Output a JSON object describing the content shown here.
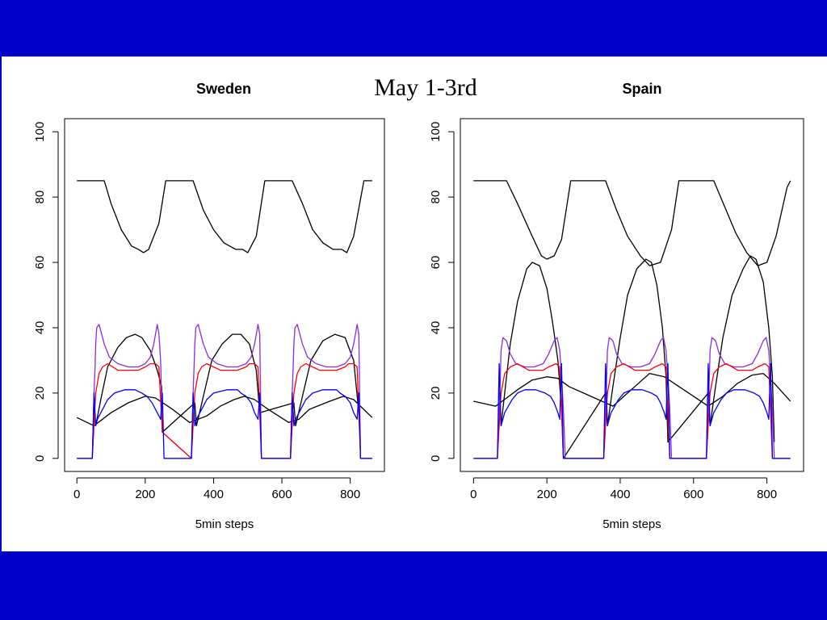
{
  "slide": {
    "title": "May 1-3rd",
    "colors": {
      "background": "#0000cc",
      "slide_area": "#ffffff"
    }
  },
  "chart_data": [
    {
      "type": "line",
      "title": "Sweden",
      "xlabel": "5min steps",
      "ylabel": "",
      "xlim": [
        -36,
        900
      ],
      "ylim": [
        -4,
        104
      ],
      "xticks": [
        0,
        200,
        400,
        600,
        800
      ],
      "yticks": [
        0,
        20,
        40,
        60,
        80,
        100
      ],
      "grid": false,
      "legend": "none",
      "series": [
        {
          "color": "#000000",
          "x": [
            0,
            80,
            100,
            130,
            160,
            180,
            195,
            210,
            240,
            260,
            340,
            370,
            400,
            430,
            465,
            485,
            500,
            525,
            550,
            630,
            660,
            690,
            720,
            750,
            775,
            790,
            810,
            840,
            864
          ],
          "y": [
            85,
            85,
            78,
            70,
            65,
            64,
            63,
            64,
            72,
            85,
            85,
            76,
            70,
            66,
            64,
            64,
            63,
            68,
            85,
            85,
            78,
            70,
            66,
            64,
            64,
            63,
            68,
            85,
            85
          ]
        },
        {
          "color": "#000000",
          "x": [
            0,
            30,
            50,
            100,
            150,
            200,
            230,
            280,
            330,
            380,
            420,
            460,
            490,
            520,
            560,
            620,
            650,
            680,
            740,
            780,
            810,
            864
          ],
          "y": [
            12.5,
            11,
            10,
            14,
            17,
            19,
            18.5,
            15,
            11,
            13,
            16,
            18,
            19,
            18,
            15,
            11,
            12,
            15,
            17.5,
            19,
            18,
            12.5
          ]
        },
        {
          "color": "#000000",
          "x": [
            50,
            55,
            70,
            90,
            120,
            145,
            170,
            190,
            215,
            235,
            248,
            250,
            345,
            350,
            370,
            395,
            425,
            455,
            480,
            505,
            525,
            535,
            635,
            640,
            660,
            685,
            720,
            755,
            785,
            810,
            825
          ],
          "y": [
            17,
            10,
            18,
            28,
            34,
            37,
            38,
            37,
            33,
            27,
            22,
            8,
            17,
            10,
            19,
            30,
            35,
            38,
            38,
            35,
            27,
            14,
            17,
            10,
            19,
            30,
            36,
            38,
            37,
            30,
            14
          ]
        },
        {
          "color": "#8a2be2",
          "x": [
            0,
            45,
            50,
            53,
            55,
            58,
            65,
            80,
            95,
            120,
            150,
            180,
            200,
            215,
            225,
            235,
            240,
            245,
            250,
            335,
            340,
            343,
            345,
            348,
            355,
            370,
            385,
            410,
            440,
            470,
            495,
            510,
            520,
            530,
            535,
            540,
            625,
            630,
            633,
            635,
            638,
            645,
            660,
            675,
            700,
            730,
            760,
            785,
            800,
            810,
            820,
            825,
            830,
            864
          ],
          "y": [
            0,
            0,
            20,
            28,
            35,
            40,
            41,
            35,
            31,
            29,
            28,
            28,
            29,
            31,
            35,
            41,
            38,
            30,
            8,
            0,
            20,
            28,
            35,
            40,
            41,
            35,
            31,
            29,
            28,
            28,
            29,
            31,
            35,
            41,
            38,
            0,
            0,
            20,
            28,
            35,
            40,
            41,
            35,
            31,
            29,
            28,
            28,
            29,
            31,
            35,
            41,
            38,
            0,
            0
          ]
        },
        {
          "color": "#ff0000",
          "x": [
            45,
            50,
            55,
            65,
            75,
            90,
            120,
            180,
            200,
            215,
            230,
            240,
            250,
            335,
            340,
            345,
            355,
            365,
            380,
            420,
            470,
            495,
            505,
            520,
            530,
            540,
            625,
            630,
            635,
            645,
            655,
            670,
            710,
            760,
            785,
            795,
            810,
            820,
            830
          ],
          "y": [
            0,
            10,
            20,
            26,
            28,
            29,
            27,
            27,
            28,
            29,
            29,
            28,
            8,
            0,
            10,
            20,
            26,
            28,
            29,
            27,
            27,
            28,
            29,
            29,
            28,
            0,
            0,
            10,
            20,
            26,
            28,
            29,
            27,
            27,
            28,
            29,
            29,
            28,
            0
          ]
        },
        {
          "color": "#0000ff",
          "x": [
            0,
            45,
            50,
            55,
            60,
            70,
            80,
            90,
            110,
            140,
            170,
            190,
            205,
            220,
            235,
            245,
            250,
            255,
            335,
            340,
            345,
            350,
            360,
            370,
            380,
            400,
            440,
            470,
            480,
            495,
            510,
            520,
            530,
            535,
            540,
            625,
            630,
            635,
            640,
            650,
            660,
            670,
            690,
            720,
            760,
            770,
            785,
            800,
            810,
            820,
            825,
            830,
            864
          ],
          "y": [
            0,
            0,
            20,
            10,
            12,
            14,
            16,
            18,
            20,
            21,
            21,
            20,
            19,
            17,
            14,
            12,
            20,
            0,
            0,
            20,
            10,
            12,
            14,
            16,
            18,
            20,
            21,
            21,
            20,
            19,
            17,
            14,
            12,
            20,
            0,
            0,
            20,
            10,
            12,
            14,
            16,
            18,
            20,
            21,
            21,
            20,
            19,
            17,
            14,
            12,
            20,
            0,
            0
          ]
        }
      ]
    },
    {
      "type": "line",
      "title": "Spain",
      "xlabel": "5min steps",
      "ylabel": "",
      "xlim": [
        -36,
        900
      ],
      "ylim": [
        -4,
        104
      ],
      "xticks": [
        0,
        200,
        400,
        600,
        800
      ],
      "yticks": [
        0,
        20,
        40,
        60,
        80,
        100
      ],
      "grid": false,
      "legend": "none",
      "series": [
        {
          "color": "#000000",
          "x": [
            0,
            90,
            120,
            160,
            185,
            200,
            220,
            240,
            265,
            360,
            390,
            420,
            455,
            480,
            510,
            540,
            560,
            655,
            685,
            715,
            745,
            775,
            800,
            825,
            855,
            864
          ],
          "y": [
            85,
            85,
            78,
            68,
            62,
            61,
            62,
            67,
            85,
            85,
            76,
            68,
            62,
            59,
            60,
            70,
            85,
            85,
            77,
            69,
            63,
            59,
            60,
            68,
            83,
            85
          ]
        },
        {
          "color": "#000000",
          "x": [
            0,
            60,
            120,
            160,
            200,
            230,
            260,
            300,
            340,
            380,
            420,
            460,
            480,
            520,
            560,
            600,
            640,
            680,
            720,
            760,
            790,
            820,
            864
          ],
          "y": [
            17.5,
            16,
            21,
            24,
            25,
            24.5,
            22,
            20,
            18,
            16,
            20,
            24,
            26,
            25,
            22,
            19,
            16,
            19,
            23,
            25.5,
            26,
            23,
            17.5
          ]
        },
        {
          "color": "#000000",
          "x": [
            70,
            75,
            85,
            100,
            120,
            145,
            160,
            180,
            200,
            215,
            230,
            240,
            245,
            360,
            365,
            380,
            400,
            420,
            445,
            470,
            485,
            500,
            515,
            525,
            530,
            640,
            645,
            660,
            680,
            705,
            735,
            755,
            770,
            790,
            805,
            815,
            820
          ],
          "y": [
            20,
            10,
            20,
            35,
            48,
            58,
            60,
            59,
            52,
            42,
            30,
            15,
            0,
            20,
            10,
            22,
            37,
            50,
            58,
            61,
            60,
            53,
            40,
            25,
            5,
            20,
            10,
            22,
            37,
            50,
            58,
            62,
            61,
            54,
            40,
            25,
            5
          ]
        },
        {
          "color": "#8a2be2",
          "x": [
            0,
            65,
            70,
            73,
            75,
            80,
            90,
            100,
            115,
            140,
            165,
            190,
            205,
            220,
            228,
            235,
            240,
            245,
            250,
            355,
            360,
            363,
            365,
            370,
            380,
            390,
            405,
            430,
            455,
            480,
            495,
            510,
            518,
            525,
            530,
            535,
            540,
            635,
            640,
            643,
            645,
            650,
            660,
            670,
            685,
            710,
            735,
            760,
            775,
            790,
            798,
            805,
            810,
            815,
            820,
            864
          ],
          "y": [
            0,
            0,
            15,
            25,
            33,
            37,
            36,
            32,
            29,
            28,
            28,
            29,
            32,
            36,
            37,
            33,
            25,
            15,
            0,
            0,
            15,
            25,
            33,
            37,
            36,
            32,
            29,
            28,
            28,
            29,
            32,
            36,
            37,
            33,
            25,
            15,
            0,
            0,
            15,
            25,
            33,
            37,
            36,
            32,
            29,
            28,
            28,
            29,
            32,
            36,
            37,
            33,
            25,
            15,
            0,
            0
          ]
        },
        {
          "color": "#ff0000",
          "x": [
            65,
            70,
            75,
            85,
            100,
            120,
            150,
            190,
            205,
            225,
            235,
            245,
            355,
            360,
            365,
            375,
            390,
            410,
            440,
            480,
            495,
            515,
            525,
            535,
            635,
            640,
            645,
            655,
            670,
            690,
            720,
            760,
            775,
            795,
            805,
            815
          ],
          "y": [
            0,
            10,
            20,
            26,
            28,
            29,
            27,
            27,
            28,
            29,
            28,
            0,
            0,
            10,
            20,
            26,
            28,
            29,
            27,
            27,
            28,
            29,
            28,
            0,
            0,
            10,
            20,
            26,
            28,
            29,
            27,
            27,
            28,
            29,
            28,
            0
          ]
        },
        {
          "color": "#0000ff",
          "x": [
            0,
            65,
            70,
            75,
            80,
            85,
            95,
            105,
            120,
            140,
            170,
            195,
            210,
            220,
            230,
            235,
            240,
            245,
            250,
            355,
            360,
            365,
            370,
            375,
            385,
            395,
            410,
            430,
            460,
            485,
            500,
            510,
            520,
            525,
            530,
            535,
            540,
            635,
            640,
            645,
            650,
            655,
            665,
            675,
            690,
            710,
            740,
            765,
            780,
            790,
            800,
            805,
            810,
            815,
            820,
            864
          ],
          "y": [
            0,
            0,
            29,
            10,
            12,
            14,
            16,
            18,
            20,
            21,
            21,
            20,
            19,
            17,
            14,
            12,
            29,
            0,
            0,
            0,
            29,
            10,
            12,
            14,
            16,
            18,
            20,
            21,
            21,
            20,
            19,
            17,
            14,
            12,
            29,
            0,
            0,
            0,
            29,
            10,
            12,
            14,
            16,
            18,
            20,
            21,
            21,
            20,
            19,
            17,
            14,
            12,
            29,
            0,
            0,
            0
          ]
        }
      ]
    }
  ]
}
